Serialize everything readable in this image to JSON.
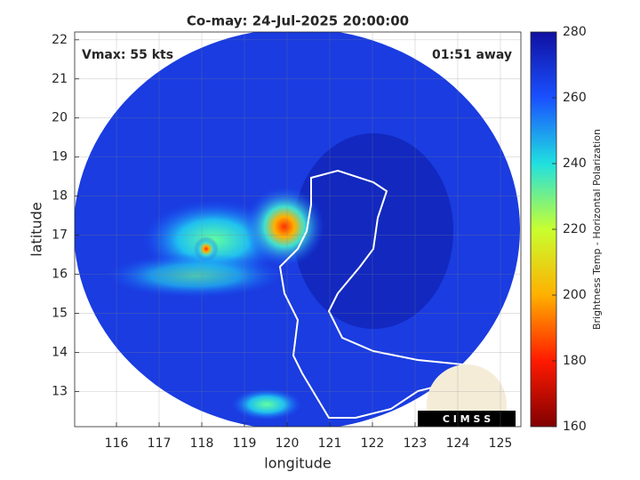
{
  "chart_data": {
    "type": "heatmap",
    "title": "Co-may: 24-Jul-2025 20:00:00",
    "xlabel": "longitude",
    "ylabel": "latitude",
    "annotations": [
      "Vmax: 55 kts",
      "01:51 away"
    ],
    "logo_text": "C I M S S",
    "xlim": [
      115.02,
      125.48
    ],
    "xticks": [
      116,
      117,
      118,
      119,
      120,
      121,
      122,
      123,
      124,
      125
    ],
    "ylim": [
      12.1,
      22.2
    ],
    "yticks": [
      13,
      14,
      15,
      16,
      17,
      18,
      19,
      20,
      21,
      22
    ],
    "grid": true,
    "colorbar": {
      "label": "Brightness Temp - Horizontal Polarization",
      "clim": [
        160,
        280
      ],
      "ticks": [
        160,
        180,
        200,
        220,
        240,
        260,
        280
      ],
      "colormap": [
        "#800000",
        "#ff1a00",
        "#ffb000",
        "#c8ff30",
        "#20e0e0",
        "#1a50ff",
        "#1010a0"
      ]
    }
  }
}
